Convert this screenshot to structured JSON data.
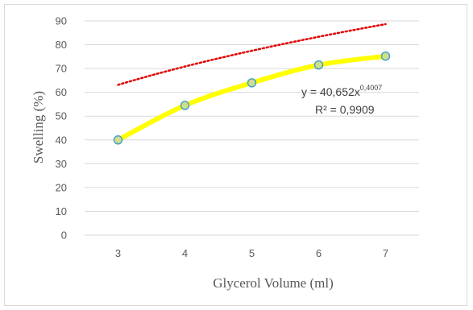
{
  "chart_data": {
    "type": "scatter",
    "title": "",
    "xlabel": "Glycerol Volume (ml)",
    "ylabel": "Swelling (%)",
    "x": [
      3,
      4,
      5,
      6,
      7
    ],
    "xlim": [
      2.5,
      7.5
    ],
    "ylim": [
      0,
      90
    ],
    "yticks": [
      0,
      10,
      20,
      30,
      40,
      50,
      60,
      70,
      80,
      90
    ],
    "xticks": [
      3,
      4,
      5,
      6,
      7
    ],
    "grid": "horizontal",
    "legend": "none",
    "series": [
      {
        "values": [
          40,
          54.5,
          64,
          71.5,
          75.2
        ],
        "line_color": "#ffff00",
        "marker_fill": "#cfe08a",
        "marker_edge": "#4a9fc7"
      }
    ],
    "trendline": {
      "type": "power",
      "color": "#e00000",
      "style": "dotted",
      "equation_base": "y = 40,652x",
      "equation_exp": "0,4007",
      "r2_label": "R² = 0,9909",
      "a": 40.652,
      "b": 0.4007
    }
  }
}
